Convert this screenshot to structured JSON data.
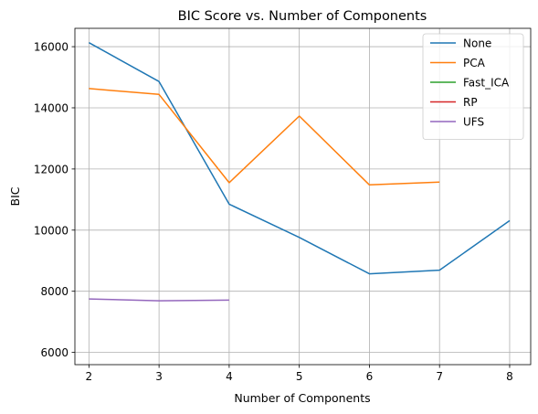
{
  "chart_data": {
    "type": "line",
    "title": "BIC Score vs. Number of Components",
    "xlabel": "Number of Components",
    "ylabel": "BIC",
    "xlim": [
      1.8,
      8.3
    ],
    "ylim": [
      5600,
      16600
    ],
    "x_ticks": [
      2,
      3,
      4,
      5,
      6,
      7,
      8
    ],
    "y_ticks": [
      6000,
      8000,
      10000,
      12000,
      14000,
      16000
    ],
    "grid": true,
    "legend_position": "top-right",
    "series": [
      {
        "name": "None",
        "color": "#1f77b4",
        "x": [
          2,
          3,
          4,
          5,
          6,
          7,
          8
        ],
        "values": [
          16130,
          14860,
          10850,
          9760,
          8570,
          8690,
          10310
        ]
      },
      {
        "name": "PCA",
        "color": "#ff7f0e",
        "x": [
          2,
          3,
          4,
          5,
          6,
          7
        ],
        "values": [
          14630,
          14440,
          11550,
          13730,
          11480,
          11570
        ]
      },
      {
        "name": "Fast_ICA",
        "color": "#2ca02c",
        "x": [],
        "values": []
      },
      {
        "name": "RP",
        "color": "#d62728",
        "x": [],
        "values": []
      },
      {
        "name": "UFS",
        "color": "#9467bd",
        "x": [
          2,
          3,
          4
        ],
        "values": [
          7750,
          7690,
          7710
        ]
      }
    ]
  }
}
